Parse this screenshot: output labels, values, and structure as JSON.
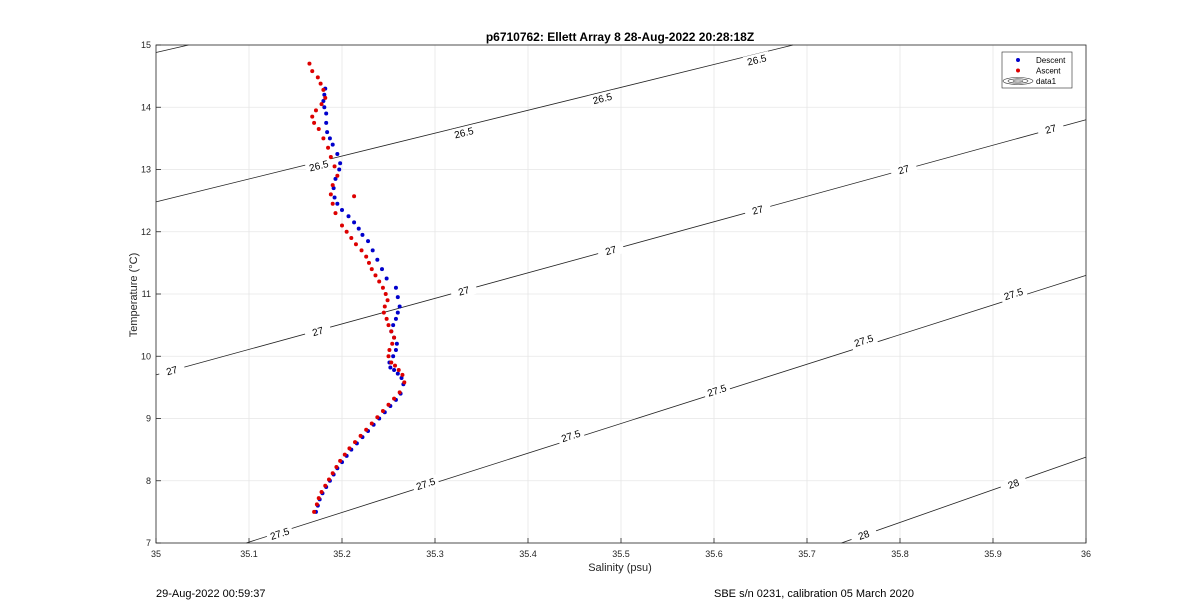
{
  "chart_data": {
    "type": "scatter",
    "title": "p6710762: Ellett Array 8 28-Aug-2022 20:28:18Z",
    "xlabel": "Salinity (psu)",
    "ylabel": "Temperature (°C)",
    "xlim": [
      35,
      36
    ],
    "ylim": [
      7,
      15
    ],
    "xticks": [
      "35",
      "35.1",
      "35.2",
      "35.3",
      "35.4",
      "35.5",
      "35.6",
      "35.7",
      "35.8",
      "35.9",
      "36"
    ],
    "yticks": [
      "7",
      "8",
      "9",
      "10",
      "11",
      "12",
      "13",
      "14",
      "15"
    ],
    "grid": true,
    "legend_position": "top-right",
    "legend": [
      "Descent",
      "Ascent",
      "data1"
    ],
    "series": [
      {
        "name": "Descent",
        "color": "#0000cc",
        "x": [
          35.172,
          35.174,
          35.176,
          35.179,
          35.183,
          35.187,
          35.191,
          35.195,
          35.2,
          35.205,
          35.21,
          35.216,
          35.222,
          35.228,
          35.234,
          35.24,
          35.246,
          35.252,
          35.258,
          35.263,
          35.266,
          35.264,
          35.26,
          35.256,
          35.252,
          35.251,
          35.255,
          35.258,
          35.259,
          35.256,
          35.253,
          35.255,
          35.258,
          35.26,
          35.262,
          35.26,
          35.258,
          35.248,
          35.243,
          35.238,
          35.233,
          35.228,
          35.222,
          35.218,
          35.213,
          35.207,
          35.2,
          35.195,
          35.192,
          35.191,
          35.193,
          35.197,
          35.198,
          35.195,
          35.19,
          35.187,
          35.184,
          35.183,
          35.183,
          35.181,
          35.18,
          35.181,
          35.182
        ],
        "y": [
          7.5,
          7.6,
          7.7,
          7.8,
          7.9,
          8.0,
          8.1,
          8.2,
          8.3,
          8.4,
          8.5,
          8.6,
          8.7,
          8.8,
          8.9,
          9.0,
          9.1,
          9.2,
          9.3,
          9.4,
          9.55,
          9.65,
          9.72,
          9.78,
          9.82,
          9.9,
          10.0,
          10.1,
          10.2,
          10.3,
          10.4,
          10.5,
          10.6,
          10.7,
          10.8,
          10.95,
          11.1,
          11.25,
          11.4,
          11.55,
          11.7,
          11.85,
          11.95,
          12.05,
          12.15,
          12.25,
          12.35,
          12.45,
          12.55,
          12.7,
          12.85,
          13.0,
          13.1,
          13.25,
          13.4,
          13.5,
          13.6,
          13.75,
          13.9,
          14.0,
          14.1,
          14.2,
          14.3
        ]
      },
      {
        "name": "Ascent",
        "color": "#dd0000",
        "x": [
          35.17,
          35.173,
          35.175,
          35.178,
          35.182,
          35.186,
          35.19,
          35.194,
          35.198,
          35.203,
          35.208,
          35.214,
          35.22,
          35.226,
          35.232,
          35.238,
          35.244,
          35.25,
          35.256,
          35.262,
          35.267,
          35.265,
          35.261,
          35.257,
          35.253,
          35.25,
          35.251,
          35.254,
          35.256,
          35.253,
          35.25,
          35.248,
          35.245,
          35.246,
          35.249,
          35.247,
          35.244,
          35.24,
          35.236,
          35.232,
          35.229,
          35.226,
          35.221,
          35.215,
          35.21,
          35.205,
          35.2,
          35.213,
          35.193,
          35.19,
          35.188,
          35.19,
          35.195,
          35.192,
          35.188,
          35.185,
          35.18,
          35.175,
          35.17,
          35.168,
          35.172,
          35.178,
          35.182,
          35.18,
          35.177,
          35.174,
          35.168,
          35.165
        ],
        "y": [
          7.5,
          7.62,
          7.72,
          7.82,
          7.92,
          8.02,
          8.12,
          8.22,
          8.32,
          8.42,
          8.52,
          8.62,
          8.72,
          8.82,
          8.92,
          9.02,
          9.12,
          9.22,
          9.32,
          9.42,
          9.58,
          9.7,
          9.78,
          9.85,
          9.9,
          10.0,
          10.1,
          10.2,
          10.3,
          10.4,
          10.5,
          10.6,
          10.7,
          10.8,
          10.9,
          11.0,
          11.1,
          11.2,
          11.3,
          11.4,
          11.5,
          11.6,
          11.7,
          11.8,
          11.9,
          12.0,
          12.1,
          12.57,
          12.3,
          12.45,
          12.6,
          12.75,
          12.9,
          13.05,
          13.2,
          13.35,
          13.5,
          13.65,
          13.75,
          13.85,
          13.95,
          14.05,
          14.15,
          14.28,
          14.38,
          14.48,
          14.58,
          14.7
        ]
      }
    ],
    "contours": [
      {
        "label": "26.5",
        "x0": 35.0,
        "y0": 12.48,
        "x1": 35.685,
        "y1": 15.0,
        "labels": [
          [
            35.175,
            13.06
          ],
          [
            35.331,
            13.59
          ],
          [
            35.48,
            14.14
          ],
          [
            35.646,
            14.76
          ]
        ]
      },
      {
        "label": "26.5",
        "x0": 35.0,
        "y0": 14.88,
        "x1": 35.035,
        "y1": 15.0,
        "labels": []
      },
      {
        "label": "27",
        "x0": 35.0,
        "y0": 9.7,
        "x1": 36.0,
        "y1": 13.8,
        "labels": [
          [
            35.017,
            9.77
          ],
          [
            35.174,
            10.4
          ],
          [
            35.331,
            11.05
          ],
          [
            35.489,
            11.7
          ],
          [
            35.647,
            12.35
          ],
          [
            35.804,
            13.0
          ],
          [
            35.962,
            13.65
          ]
        ]
      },
      {
        "label": "27.5",
        "x0": 35.097,
        "y0": 7.0,
        "x1": 36.0,
        "y1": 11.3,
        "labels": [
          [
            35.133,
            7.15
          ],
          [
            35.29,
            7.95
          ],
          [
            35.446,
            8.72
          ],
          [
            35.603,
            9.45
          ],
          [
            35.761,
            10.25
          ],
          [
            35.922,
            11.0
          ]
        ]
      },
      {
        "label": "28",
        "x0": 35.737,
        "y0": 7.0,
        "x1": 36.0,
        "y1": 8.38,
        "labels": [
          [
            35.761,
            7.13
          ],
          [
            35.922,
            7.95
          ]
        ]
      }
    ],
    "footer_left": "29-Aug-2022 00:59:37",
    "footer_right": "SBE s/n 0231, calibration 05 March 2020"
  }
}
